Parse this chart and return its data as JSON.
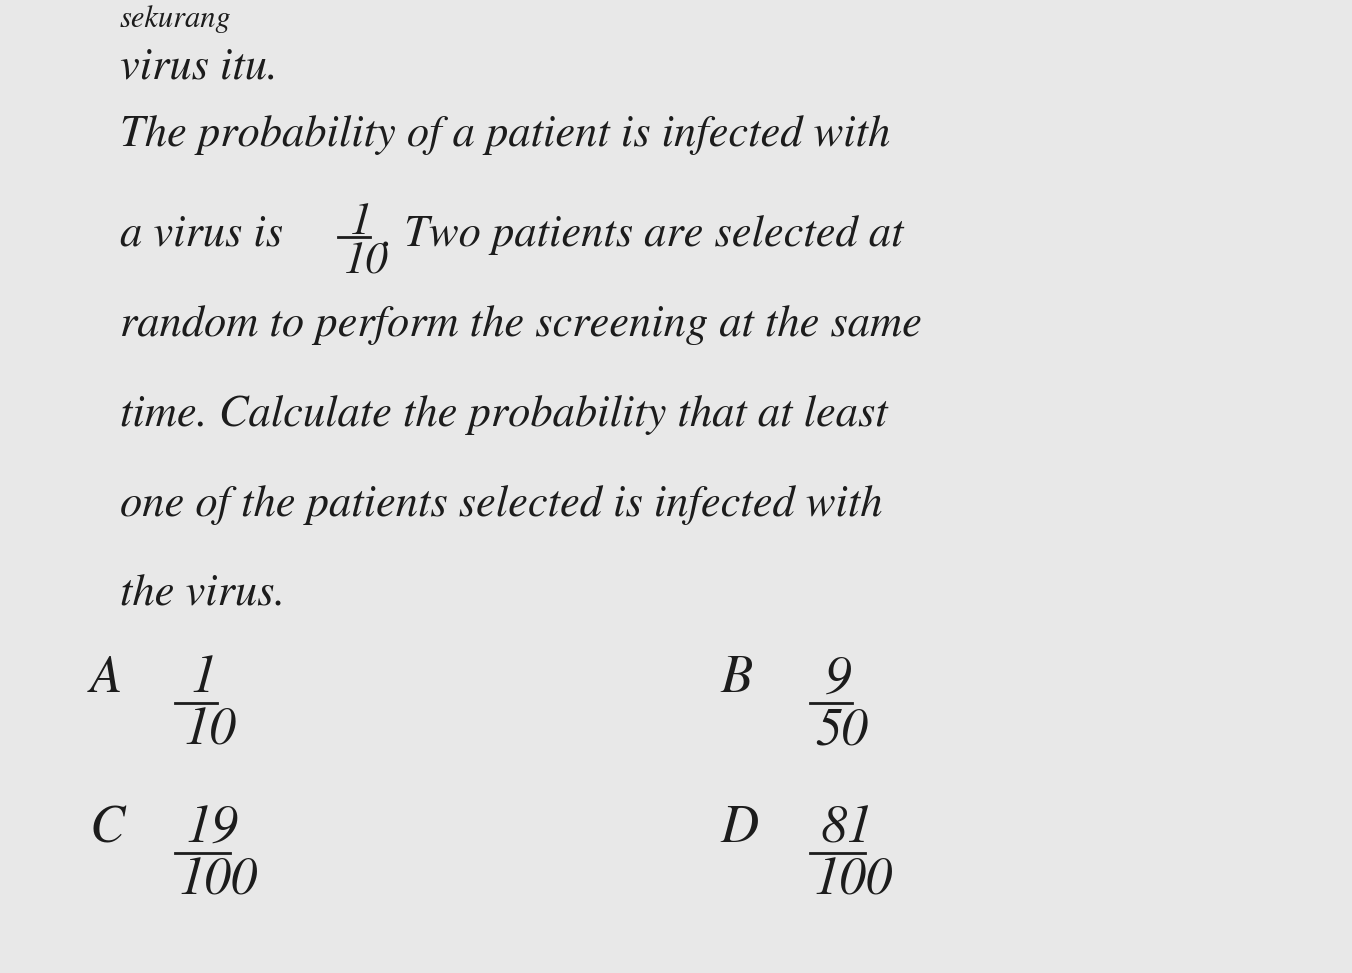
{
  "background_color": "#e8e8e8",
  "text_color": "#1c1c1c",
  "line0": "sekurang",
  "line1": "virus itu.",
  "line2": "The probability of a patient is infected with",
  "line3_pre": "a virus is ",
  "frac1_num": "1",
  "frac1_den": "10",
  "line3_post": ". Two patients are selected at",
  "line4": "random to perform the screening at the same",
  "line5": "time. Calculate the probability that at least",
  "line6": "one of the patients selected is infected with",
  "line7": "the virus.",
  "optA_letter": "A",
  "optA_num": "1",
  "optA_den": "10",
  "optB_letter": "B",
  "optB_num": "9",
  "optB_den": "50",
  "optC_letter": "C",
  "optC_num": "19",
  "optC_den": "100",
  "optD_letter": "D",
  "optD_num": "81",
  "optD_den": "100",
  "main_fontsize": 32,
  "small_fontsize": 22,
  "option_fontsize": 38,
  "option_letter_fontsize": 38
}
